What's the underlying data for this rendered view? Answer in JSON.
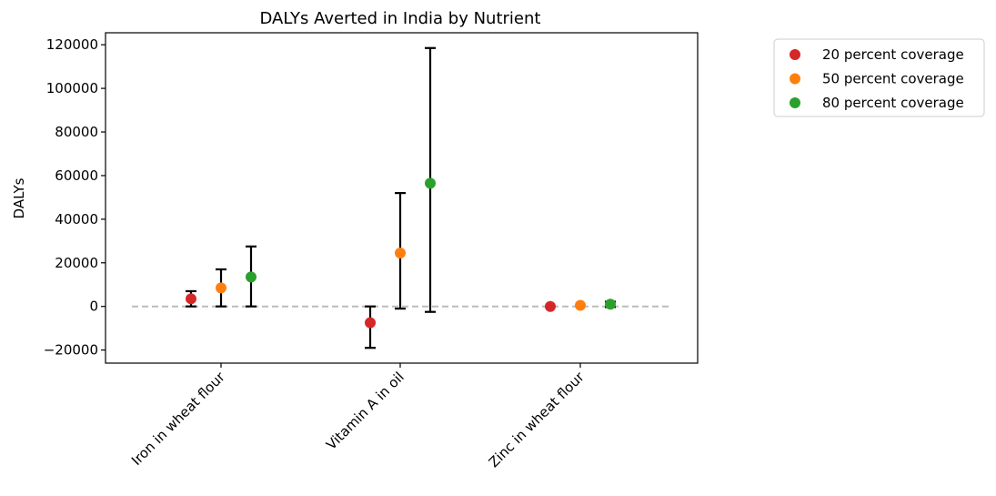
{
  "chart_data": {
    "type": "scatter",
    "title": "DALYs Averted in India by Nutrient",
    "xlabel": "",
    "ylabel": "DALYs",
    "categories": [
      "Iron in wheat flour",
      "Vitamin A in oil",
      "Zinc in wheat flour"
    ],
    "ylim": [
      -26000,
      125500
    ],
    "yticks": [
      -20000,
      0,
      20000,
      40000,
      60000,
      80000,
      100000,
      120000
    ],
    "ytick_labels": [
      "−20000",
      "0",
      "20000",
      "40000",
      "60000",
      "80000",
      "100000",
      "120000"
    ],
    "reference_line": {
      "y": 0,
      "style": "dashed",
      "color": "#bbbbbb"
    },
    "grid": false,
    "legend_position": "outside-top-right",
    "series": [
      {
        "name": "20 percent coverage",
        "color": "#d62728",
        "values": [
          3500,
          -7500,
          0
        ],
        "lower": [
          0,
          -19000,
          -300
        ],
        "upper": [
          7000,
          0,
          300
        ]
      },
      {
        "name": "50 percent coverage",
        "color": "#ff7f0e",
        "values": [
          8500,
          24500,
          500
        ],
        "lower": [
          0,
          -1000,
          -300
        ],
        "upper": [
          17000,
          52000,
          1200
        ]
      },
      {
        "name": "80 percent coverage",
        "color": "#2ca02c",
        "values": [
          13500,
          56500,
          1000
        ],
        "lower": [
          0,
          -2500,
          -300
        ],
        "upper": [
          27500,
          118500,
          2200
        ]
      }
    ]
  }
}
